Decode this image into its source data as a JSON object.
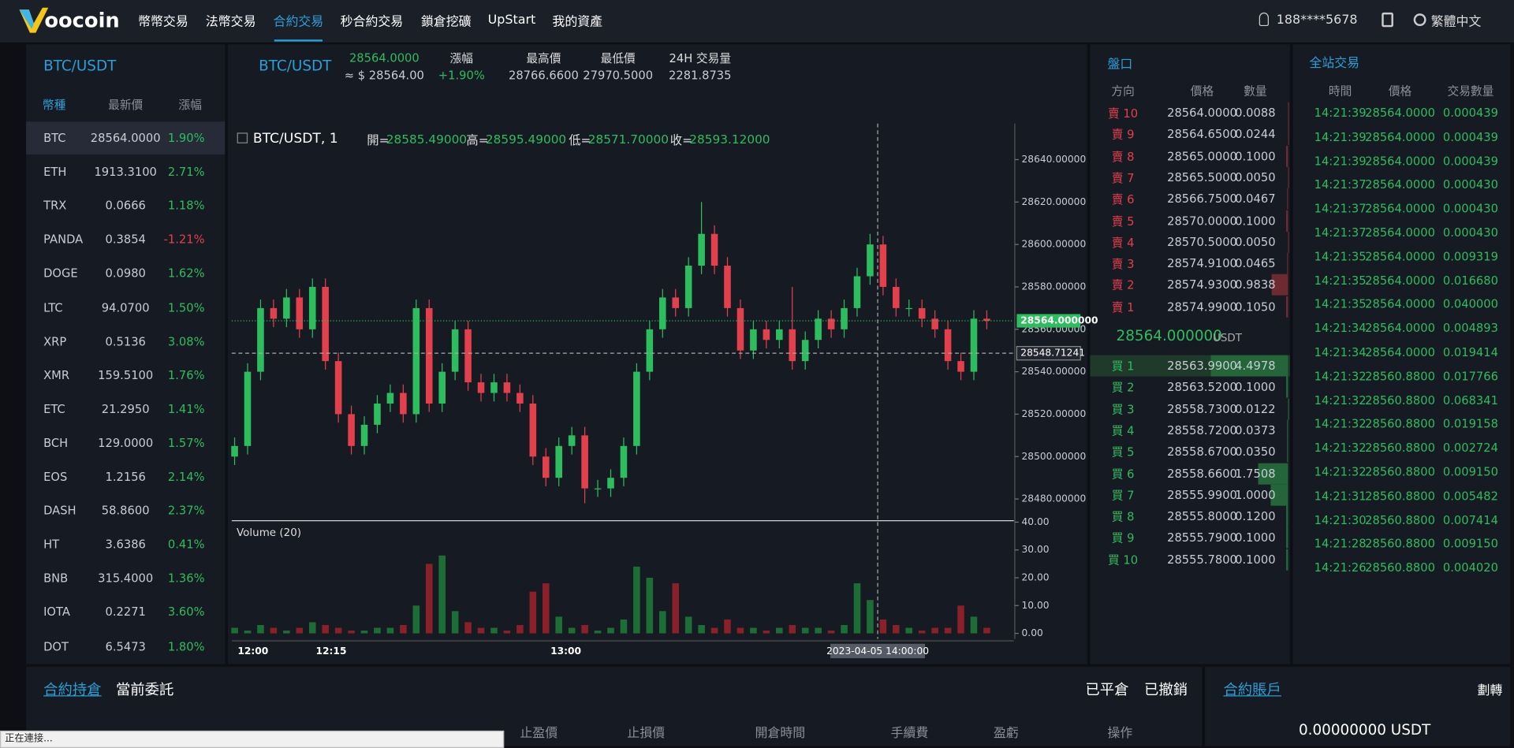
{
  "header": {
    "logo": "oocoin",
    "nav": [
      "幣幣交易",
      "法幣交易",
      "合約交易",
      "秒合約交易",
      "鎖倉挖礦",
      "UpStart",
      "我的資產"
    ],
    "active_nav": 2,
    "user": "188****5678",
    "language": "繁體中文"
  },
  "market_list": {
    "title": "BTC/USDT",
    "columns": [
      "幣種",
      "最新價",
      "漲幅"
    ],
    "rows": [
      [
        "BTC",
        "28564.0000",
        "1.90%"
      ],
      [
        "ETH",
        "1913.3100",
        "2.71%"
      ],
      [
        "TRX",
        "0.0666",
        "1.18%"
      ],
      [
        "PANDA",
        "0.3854",
        "-1.21%"
      ],
      [
        "DOGE",
        "0.0980",
        "1.62%"
      ],
      [
        "LTC",
        "94.0700",
        "1.50%"
      ],
      [
        "XRP",
        "0.5136",
        "3.08%"
      ],
      [
        "XMR",
        "159.5100",
        "1.76%"
      ],
      [
        "ETC",
        "21.2950",
        "1.41%"
      ],
      [
        "BCH",
        "129.0000",
        "1.57%"
      ],
      [
        "EOS",
        "1.2156",
        "2.14%"
      ],
      [
        "DASH",
        "58.8600",
        "2.37%"
      ],
      [
        "HT",
        "3.6386",
        "0.41%"
      ],
      [
        "BNB",
        "315.4000",
        "1.36%"
      ],
      [
        "IOTA",
        "0.2271",
        "3.60%"
      ],
      [
        "DOT",
        "6.5473",
        "1.80%"
      ]
    ]
  },
  "ticker": {
    "pair": "BTC/USDT",
    "price": "28564.0000",
    "usd_price": "≈ $ 28564.00",
    "stats": [
      {
        "label": "漲幅",
        "value": "+1.90%"
      },
      {
        "label": "最高價",
        "value": "28766.6600"
      },
      {
        "label": "最低價",
        "value": "27970.5000"
      },
      {
        "label": "24H 交易量",
        "value": "2281.8735"
      }
    ]
  },
  "chart_data": {
    "type": "candlestick",
    "legend_title": "BTC/USDT, 1",
    "ohlc_legend": [
      [
        "開=",
        "28585.49000"
      ],
      [
        "高=",
        "28595.49000"
      ],
      [
        "低=",
        "28571.70000"
      ],
      [
        "收=",
        "28593.12000"
      ]
    ],
    "open": [
      28500,
      28505,
      28540,
      28570,
      28565,
      28575,
      28560,
      28580,
      28545,
      28520,
      28505,
      28515,
      28525,
      28530,
      28520,
      28570,
      28525,
      28540,
      28560,
      28535,
      28530,
      28535,
      28530,
      28525,
      28500,
      28490,
      28505,
      28510,
      28485,
      28485,
      28490,
      28505,
      28540,
      28560,
      28575,
      28570,
      28590,
      28605,
      28590,
      28570,
      28550,
      28560,
      28555,
      28560,
      28545,
      28555,
      28565,
      28560,
      28570,
      28585,
      28600,
      28580,
      28570,
      28570,
      28565,
      28560,
      28545,
      28540,
      28565
    ],
    "high": [
      28509,
      28544,
      28574,
      28574,
      28579,
      28579,
      28584,
      28584,
      28549,
      28524,
      28519,
      28529,
      28534,
      28534,
      28574,
      28574,
      28544,
      28564,
      28564,
      28539,
      28539,
      28539,
      28534,
      28529,
      28504,
      28509,
      28514,
      28514,
      28489,
      28494,
      28509,
      28544,
      28564,
      28579,
      28579,
      28594,
      28620,
      28609,
      28594,
      28574,
      28564,
      28564,
      28564,
      28580,
      28559,
      28569,
      28569,
      28574,
      28589,
      28605,
      28604,
      28584,
      28574,
      28574,
      28569,
      28564,
      28549,
      28569,
      28569
    ],
    "low": [
      28496,
      28501,
      28536,
      28561,
      28561,
      28556,
      28556,
      28541,
      28516,
      28501,
      28501,
      28511,
      28521,
      28516,
      28516,
      28521,
      28521,
      28536,
      28531,
      28526,
      28526,
      28526,
      28521,
      28496,
      28486,
      28486,
      28501,
      28478,
      28481,
      28481,
      28486,
      28501,
      28536,
      28556,
      28566,
      28566,
      28586,
      28586,
      28566,
      28546,
      28546,
      28551,
      28551,
      28541,
      28541,
      28551,
      28556,
      28556,
      28566,
      28581,
      28576,
      28566,
      28566,
      28561,
      28556,
      28541,
      28536,
      28536,
      28560
    ],
    "close": [
      28505,
      28540,
      28570,
      28565,
      28575,
      28560,
      28580,
      28545,
      28520,
      28505,
      28515,
      28525,
      28530,
      28520,
      28570,
      28525,
      28540,
      28560,
      28535,
      28530,
      28535,
      28530,
      28525,
      28500,
      28490,
      28505,
      28510,
      28485,
      28485,
      28490,
      28505,
      28540,
      28560,
      28575,
      28570,
      28590,
      28605,
      28590,
      28570,
      28550,
      28560,
      28555,
      28560,
      28545,
      28555,
      28565,
      28560,
      28570,
      28585,
      28600,
      28580,
      28570,
      28570,
      28565,
      28560,
      28545,
      28540,
      28565,
      28564
    ],
    "volume": [
      2,
      1,
      3,
      2,
      1,
      2,
      4,
      3,
      2,
      1,
      1,
      2,
      2,
      3,
      10,
      25,
      28,
      8,
      4,
      2,
      2,
      1,
      3,
      15,
      18,
      6,
      2,
      3,
      1,
      2,
      5,
      24,
      20,
      8,
      18,
      6,
      3,
      2,
      5,
      2,
      2,
      1,
      2,
      3,
      2,
      2,
      1,
      3,
      18,
      12,
      5,
      3,
      2,
      1,
      2,
      2,
      10,
      6,
      2
    ],
    "up_color": "#2ebd5e",
    "down_color": "#e2404c",
    "ylim": [
      28470,
      28657
    ],
    "yticks": [
      {
        "value": 28480,
        "label": "28480.00000"
      },
      {
        "value": 28500,
        "label": "28500.00000"
      },
      {
        "value": 28520,
        "label": "28520.00000"
      },
      {
        "value": 28540,
        "label": "28540.00000"
      },
      {
        "value": 28560,
        "label": "28560.00000"
      },
      {
        "value": 28580,
        "label": "28580.00000"
      },
      {
        "value": 28600,
        "label": "28600.00000"
      },
      {
        "value": 28620,
        "label": "28620.00000"
      },
      {
        "value": 28640,
        "label": "28640.00000"
      }
    ],
    "last_price": {
      "value": 28564,
      "label": "28564.000000"
    },
    "crosshair_price": 28548.71241,
    "crosshair_time": "2023-04-05 14:00:00",
    "volume_title": "Volume (20)",
    "y2lim": [
      -2,
      40
    ],
    "y2ticks": [
      {
        "value": 0,
        "label": "0.00"
      },
      {
        "value": 10,
        "label": "10.00"
      },
      {
        "value": 20,
        "label": "20.00"
      },
      {
        "value": 30,
        "label": "30.00"
      },
      {
        "value": 40,
        "label": "40.00"
      }
    ],
    "xticks": [
      "12:00",
      "12:15",
      "13:00"
    ]
  },
  "order_book": {
    "title": "盤口",
    "columns": [
      "方向",
      "價格",
      "數量"
    ],
    "asks": [
      [
        "賣 10",
        "28564.0000",
        "0.0088"
      ],
      [
        "賣 9",
        "28564.6500",
        "0.0244"
      ],
      [
        "賣 8",
        "28565.0000",
        "0.1000"
      ],
      [
        "賣 7",
        "28565.5000",
        "0.0050"
      ],
      [
        "賣 6",
        "28566.7500",
        "0.0467"
      ],
      [
        "賣 5",
        "28570.0000",
        "0.1000"
      ],
      [
        "賣 4",
        "28570.5000",
        "0.0050"
      ],
      [
        "賣 3",
        "28574.9100",
        "0.0465"
      ],
      [
        "賣 2",
        "28574.9300",
        "0.9838"
      ],
      [
        "賣 1",
        "28574.9900",
        "0.1050"
      ]
    ],
    "mid_price": "28564.000000",
    "mid_unit": "USDT",
    "bids": [
      [
        "買 1",
        "28563.9900",
        "4.4978"
      ],
      [
        "買 2",
        "28563.5200",
        "0.1000"
      ],
      [
        "買 3",
        "28558.7300",
        "0.0122"
      ],
      [
        "買 4",
        "28558.7200",
        "0.0373"
      ],
      [
        "買 5",
        "28558.6700",
        "0.0350"
      ],
      [
        "買 6",
        "28558.6600",
        "1.7508"
      ],
      [
        "買 7",
        "28555.9900",
        "1.0000"
      ],
      [
        "買 8",
        "28555.8000",
        "0.1200"
      ],
      [
        "買 9",
        "28555.7900",
        "0.1000"
      ],
      [
        "買 10",
        "28555.7800",
        "0.1000"
      ]
    ]
  },
  "trades": {
    "title": "全站交易",
    "columns": [
      "時間",
      "價格",
      "交易數量"
    ],
    "rows": [
      [
        "14:21:39",
        "28564.0000",
        "0.000439"
      ],
      [
        "14:21:39",
        "28564.0000",
        "0.000439"
      ],
      [
        "14:21:39",
        "28564.0000",
        "0.000439"
      ],
      [
        "14:21:37",
        "28564.0000",
        "0.000430"
      ],
      [
        "14:21:37",
        "28564.0000",
        "0.000430"
      ],
      [
        "14:21:37",
        "28564.0000",
        "0.000430"
      ],
      [
        "14:21:35",
        "28564.0000",
        "0.009319"
      ],
      [
        "14:21:35",
        "28564.0000",
        "0.016680"
      ],
      [
        "14:21:35",
        "28564.0000",
        "0.040000"
      ],
      [
        "14:21:34",
        "28564.0000",
        "0.004893"
      ],
      [
        "14:21:34",
        "28564.0000",
        "0.019414"
      ],
      [
        "14:21:32",
        "28560.8800",
        "0.017766"
      ],
      [
        "14:21:32",
        "28560.8800",
        "0.068341"
      ],
      [
        "14:21:32",
        "28560.8800",
        "0.019158"
      ],
      [
        "14:21:32",
        "28560.8800",
        "0.002724"
      ],
      [
        "14:21:32",
        "28560.8800",
        "0.009150"
      ],
      [
        "14:21:31",
        "28560.8800",
        "0.005482"
      ],
      [
        "14:21:30",
        "28560.8800",
        "0.007414"
      ],
      [
        "14:21:28",
        "28560.8800",
        "0.009150"
      ],
      [
        "14:21:26",
        "28560.8800",
        "0.004020"
      ]
    ]
  },
  "bottom": {
    "tabs": [
      "合約持倉",
      "當前委託"
    ],
    "right_tabs": [
      "已平倉",
      "已撤銷"
    ],
    "columns": [
      "止盈價",
      "止損價",
      "開倉時間",
      "手續費",
      "盈虧",
      "操作"
    ],
    "account_title": "合約賬戶",
    "transfer": "劃轉",
    "balance": "0.00000000 USDT"
  },
  "status": "正在連接..."
}
